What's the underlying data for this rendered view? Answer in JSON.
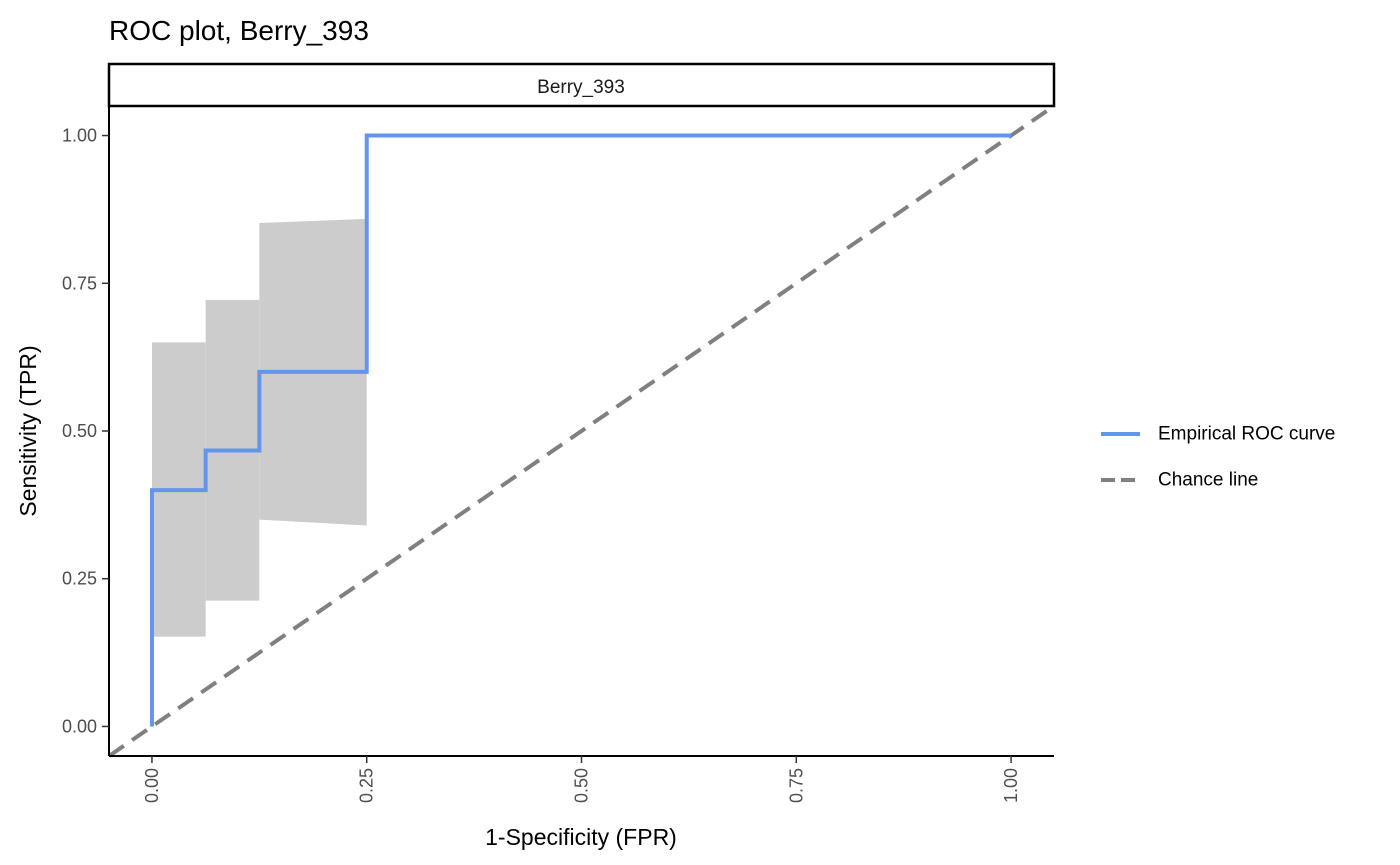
{
  "chart_data": {
    "type": "line",
    "title": "ROC plot, Berry_393",
    "facet_label": "Berry_393",
    "xlabel": "1-Specificity (FPR)",
    "ylabel": "Sensitivity (TPR)",
    "xlim": [
      -0.05,
      1.05
    ],
    "ylim": [
      -0.05,
      1.05
    ],
    "x_ticks": [
      0,
      0.25,
      0.5,
      0.75,
      1
    ],
    "x_tick_labels": [
      "0.00",
      "0.25",
      "0.50",
      "0.75",
      "1.00"
    ],
    "y_ticks": [
      0,
      0.25,
      0.5,
      0.75,
      1
    ],
    "y_tick_labels": [
      "0.00",
      "0.25",
      "0.50",
      "0.75",
      "1.00"
    ],
    "grid": false,
    "legend_position": "right",
    "series": [
      {
        "name": "Empirical ROC curve",
        "color": "#6495ED",
        "dash": "solid",
        "points": [
          [
            0,
            0
          ],
          [
            0,
            0.4
          ],
          [
            0.0625,
            0.4
          ],
          [
            0.0625,
            0.467
          ],
          [
            0.125,
            0.467
          ],
          [
            0.125,
            0.6
          ],
          [
            0.25,
            0.6
          ],
          [
            0.25,
            1
          ],
          [
            1,
            1
          ]
        ]
      },
      {
        "name": "Chance line",
        "color": "#808080",
        "dash": "dashed",
        "points": [
          [
            -0.05,
            -0.05
          ],
          [
            1.05,
            1.05
          ]
        ]
      }
    ],
    "confidence_band": {
      "color": "#CCCCCC",
      "segments": [
        {
          "x0": 0,
          "x1": 0.0625,
          "lower": [
            0.152,
            0.152
          ],
          "upper": [
            0.65,
            0.65
          ]
        },
        {
          "x0": 0.0625,
          "x1": 0.125,
          "lower": [
            0.213,
            0.213
          ],
          "upper": [
            0.722,
            0.722
          ]
        },
        {
          "x0": 0.125,
          "x1": 0.25,
          "lower": [
            0.35,
            0.34
          ],
          "upper": [
            0.852,
            0.859
          ]
        }
      ]
    }
  }
}
